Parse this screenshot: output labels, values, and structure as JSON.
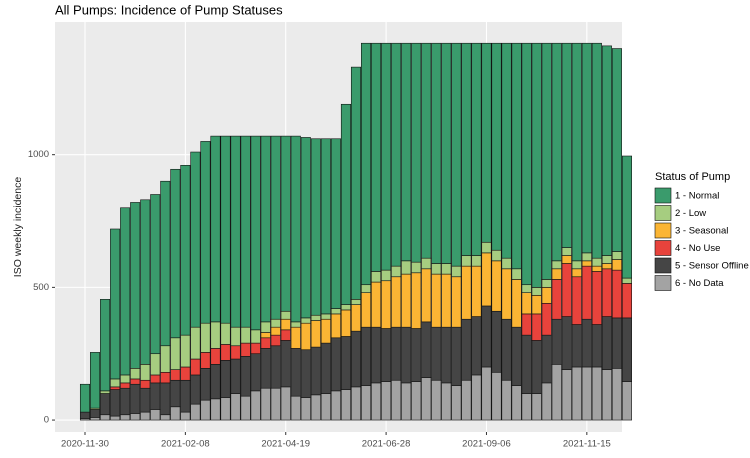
{
  "chart_data": {
    "type": "stacked_bar",
    "title": "All Pumps: Incidence of Pump Statuses",
    "y_label": "ISO weekly incidence",
    "legend_title": "Status of Pump",
    "legend": "right",
    "grid": true,
    "categories": [
      "2020-11-30",
      null,
      null,
      null,
      null,
      null,
      null,
      null,
      null,
      null,
      "2021-02-08",
      null,
      null,
      null,
      null,
      null,
      null,
      null,
      null,
      null,
      "2021-04-19",
      null,
      null,
      null,
      null,
      null,
      null,
      null,
      null,
      null,
      "2021-06-28",
      null,
      null,
      null,
      null,
      null,
      null,
      null,
      null,
      null,
      "2021-09-06",
      null,
      null,
      null,
      null,
      null,
      null,
      null,
      null,
      null,
      "2021-11-15",
      null,
      null,
      null,
      null
    ],
    "ylim": [
      -45,
      1500
    ],
    "yticks": [
      0,
      500,
      1000
    ],
    "series": [
      {
        "name": "1 - Normal",
        "color": "#3a9b6c",
        "values": [
          105,
          210,
          345,
          565,
          630,
          625,
          620,
          600,
          620,
          635,
          640,
          660,
          685,
          700,
          705,
          720,
          720,
          730,
          700,
          690,
          660,
          700,
          680,
          665,
          660,
          640,
          755,
          875,
          910,
          860,
          855,
          840,
          820,
          825,
          810,
          830,
          830,
          840,
          800,
          800,
          750,
          780,
          810,
          850,
          910,
          920,
          890,
          820,
          770,
          820,
          790,
          810,
          790,
          765,
          460
        ]
      },
      {
        "name": "2 - Low",
        "color": "#a6cd80",
        "values": [
          0,
          5,
          10,
          30,
          30,
          40,
          60,
          80,
          100,
          120,
          120,
          120,
          110,
          100,
          80,
          70,
          60,
          50,
          40,
          30,
          30,
          20,
          20,
          20,
          20,
          20,
          20,
          20,
          30,
          40,
          40,
          40,
          50,
          40,
          40,
          40,
          40,
          40,
          40,
          40,
          40,
          40,
          40,
          40,
          30,
          30,
          30,
          30,
          30,
          30,
          30,
          30,
          30,
          30,
          20
        ]
      },
      {
        "name": "3 - Seasonal",
        "color": "#fbb534",
        "values": [
          0,
          0,
          0,
          0,
          0,
          0,
          0,
          0,
          0,
          0,
          0,
          0,
          0,
          0,
          0,
          0,
          0,
          0,
          20,
          30,
          40,
          80,
          100,
          100,
          90,
          90,
          100,
          100,
          130,
          170,
          180,
          190,
          200,
          210,
          200,
          200,
          200,
          190,
          200,
          190,
          200,
          190,
          190,
          180,
          80,
          70,
          60,
          40,
          30,
          30,
          20,
          20,
          20,
          40,
          0
        ]
      },
      {
        "name": "4 - No Use",
        "color": "#e8433c",
        "values": [
          0,
          0,
          0,
          10,
          20,
          20,
          30,
          30,
          40,
          40,
          50,
          60,
          60,
          60,
          60,
          50,
          50,
          40,
          40,
          40,
          40,
          0,
          0,
          0,
          0,
          0,
          0,
          0,
          0,
          0,
          0,
          0,
          0,
          0,
          0,
          0,
          0,
          0,
          0,
          0,
          0,
          0,
          0,
          0,
          80,
          100,
          120,
          150,
          200,
          180,
          200,
          200,
          180,
          180,
          130
        ]
      },
      {
        "name": "5 - Sensor Offline",
        "color": "#454545",
        "values": [
          25,
          30,
          80,
          100,
          100,
          110,
          90,
          100,
          120,
          100,
          120,
          110,
          120,
          130,
          140,
          130,
          150,
          140,
          150,
          160,
          175,
          180,
          180,
          180,
          190,
          200,
          200,
          210,
          220,
          210,
          200,
          200,
          210,
          200,
          210,
          200,
          210,
          220,
          230,
          220,
          230,
          230,
          230,
          220,
          220,
          200,
          180,
          170,
          200,
          160,
          180,
          160,
          200,
          190,
          240
        ]
      },
      {
        "name": "6 - No Data",
        "color": "#a3a3a3",
        "values": [
          5,
          10,
          20,
          15,
          20,
          25,
          30,
          40,
          20,
          50,
          30,
          60,
          75,
          80,
          85,
          100,
          90,
          110,
          120,
          120,
          125,
          90,
          85,
          95,
          100,
          110,
          115,
          125,
          130,
          140,
          145,
          150,
          140,
          145,
          160,
          150,
          140,
          130,
          150,
          170,
          200,
          180,
          150,
          130,
          100,
          100,
          140,
          210,
          190,
          200,
          200,
          200,
          190,
          195,
          145
        ]
      }
    ]
  }
}
